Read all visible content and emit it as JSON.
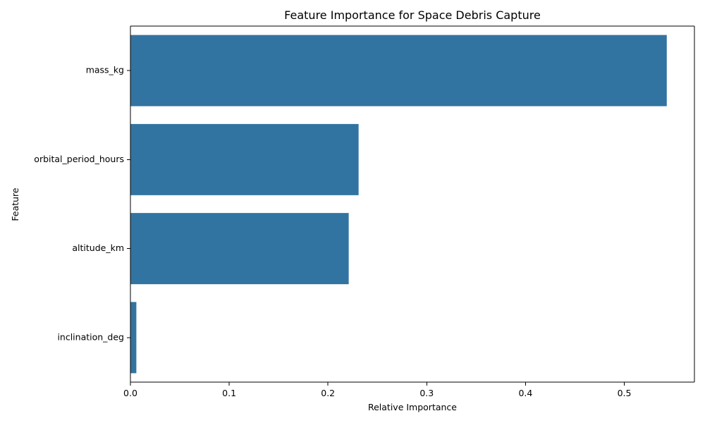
{
  "chart_data": {
    "type": "bar",
    "orientation": "horizontal",
    "title": "Feature Importance for Space Debris Capture",
    "xlabel": "Relative Importance",
    "ylabel": "Feature",
    "categories": [
      "mass_kg",
      "orbital_period_hours",
      "altitude_km",
      "inclination_deg"
    ],
    "values": [
      0.543,
      0.231,
      0.221,
      0.006
    ],
    "xlim": [
      0,
      0.571
    ],
    "xticks": [
      "0.0",
      "0.1",
      "0.2",
      "0.3",
      "0.4",
      "0.5"
    ],
    "bar_color": "#3274a1",
    "grid": false,
    "legend": "none"
  }
}
